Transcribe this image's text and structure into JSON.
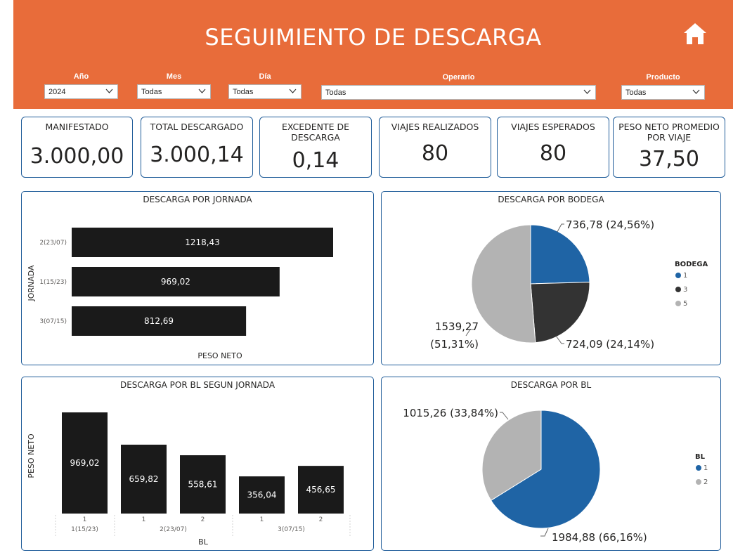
{
  "header": {
    "title": "SEGUIMIENTO DE DESCARGA",
    "background": "#e86c3a",
    "home_icon": "home-icon"
  },
  "filters": [
    {
      "label": "Año",
      "value": "2024"
    },
    {
      "label": "Mes",
      "value": "Todas"
    },
    {
      "label": "Día",
      "value": "Todas"
    },
    {
      "label": "Operario",
      "value": "Todas"
    },
    {
      "label": "Producto",
      "value": "Todas"
    }
  ],
  "kpis": [
    {
      "label": "MANIFESTADO",
      "value": "3.000,00"
    },
    {
      "label": "TOTAL DESCARGADO",
      "value": "3.000,14"
    },
    {
      "label": "EXCEDENTE DE DESCARGA",
      "value": "0,14"
    },
    {
      "label": "VIAJES REALIZADOS",
      "value": "80"
    },
    {
      "label": "VIAJES ESPERADOS",
      "value": "80"
    },
    {
      "label": "PESO NETO PROMEDIO POR VIAJE",
      "value": "37,50"
    }
  ],
  "chart_data": [
    {
      "type": "bar",
      "orientation": "horizontal",
      "title": "DESCARGA POR JORNADA",
      "xlabel": "PESO NETO",
      "ylabel": "JORNADA",
      "categories": [
        "2(23/07)",
        "1(15/23)",
        "3(07/15)"
      ],
      "values": [
        1218.43,
        969.02,
        812.69
      ],
      "value_labels": [
        "1218,43",
        "969,02",
        "812,69"
      ],
      "bar_color": "#1a1a1a"
    },
    {
      "type": "pie",
      "title": "DESCARGA POR BODEGA",
      "legend_title": "BODEGA",
      "legend_position": "right",
      "slices": [
        {
          "name": "1",
          "value": 736.78,
          "label": "736,78 (24,56%)",
          "color": "#1f64a5"
        },
        {
          "name": "3",
          "value": 724.09,
          "label": "724,09 (24,14%)",
          "color": "#333333"
        },
        {
          "name": "5",
          "value": 1539.27,
          "label_lines": [
            "1539,27",
            "(51,31%)"
          ],
          "color": "#b3b3b3"
        }
      ]
    },
    {
      "type": "bar",
      "orientation": "vertical",
      "title": "DESCARGA POR BL SEGUN JORNADA",
      "xlabel": "BL",
      "ylabel": "PESO NETO",
      "groups": [
        {
          "name": "1(15/23)",
          "bars": [
            {
              "bl": "1",
              "value": 969.02,
              "label": "969,02"
            }
          ]
        },
        {
          "name": "2(23/07)",
          "bars": [
            {
              "bl": "1",
              "value": 659.82,
              "label": "659,82"
            },
            {
              "bl": "2",
              "value": 558.61,
              "label": "558,61"
            }
          ]
        },
        {
          "name": "3(07/15)",
          "bars": [
            {
              "bl": "1",
              "value": 356.04,
              "label": "356,04"
            },
            {
              "bl": "2",
              "value": 456.65,
              "label": "456,65"
            }
          ]
        }
      ],
      "bar_color": "#1a1a1a"
    },
    {
      "type": "pie",
      "title": "DESCARGA POR BL",
      "legend_title": "BL",
      "legend_position": "right",
      "slices": [
        {
          "name": "1",
          "value": 1984.88,
          "label": "1984,88 (66,16%)",
          "color": "#1f64a5"
        },
        {
          "name": "2",
          "value": 1015.26,
          "label": "1015,26 (33,84%)",
          "color": "#b3b3b3"
        }
      ]
    }
  ]
}
